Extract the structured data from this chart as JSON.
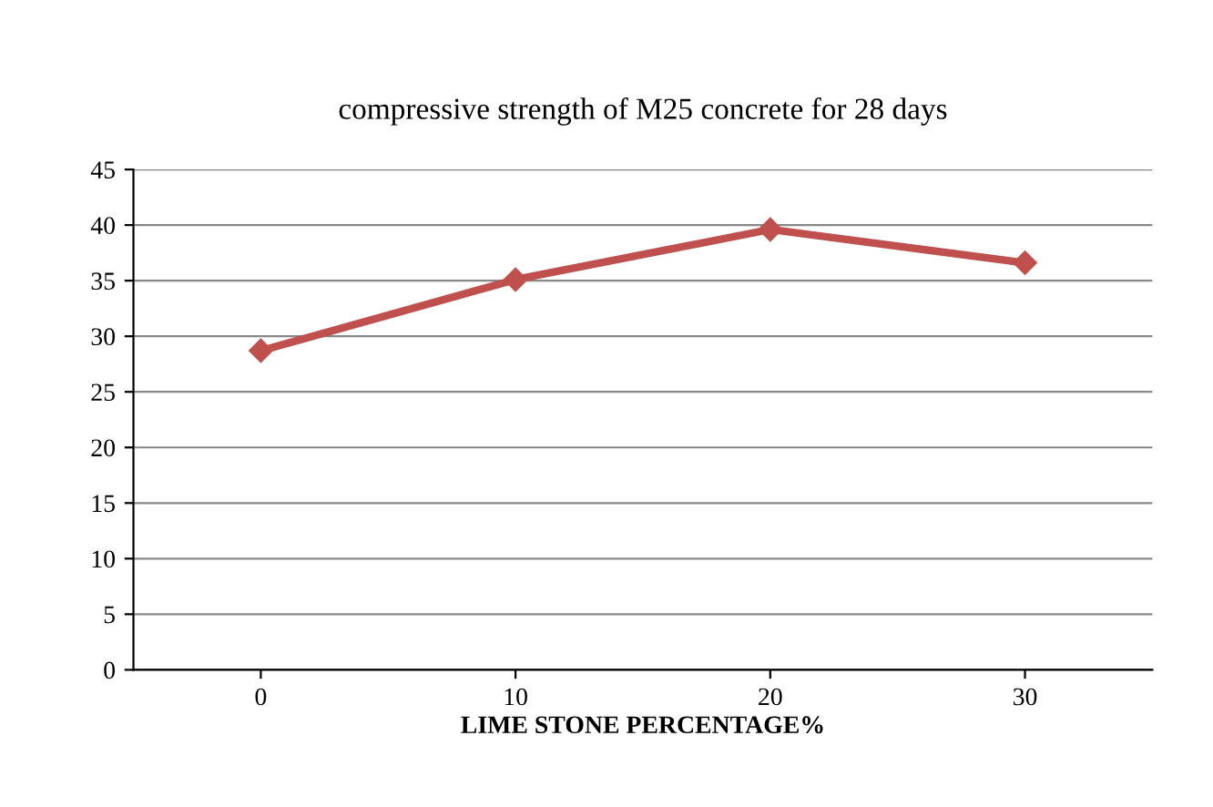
{
  "chart_data": {
    "type": "line",
    "title": "compressive strength of M25 concrete for 28 days",
    "xlabel": "LIME STONE PERCENTAGE%",
    "categories": [
      "0",
      "10",
      "20",
      "30"
    ],
    "series": [
      {
        "color": "#c0504d",
        "values": [
          28.7,
          35.1,
          39.6,
          36.6
        ]
      }
    ],
    "ylim": [
      0,
      45
    ],
    "yticks": [
      0,
      5,
      10,
      15,
      20,
      25,
      30,
      35,
      40,
      45
    ],
    "grid": "y",
    "marker": "diamond",
    "line_style": "solid"
  }
}
